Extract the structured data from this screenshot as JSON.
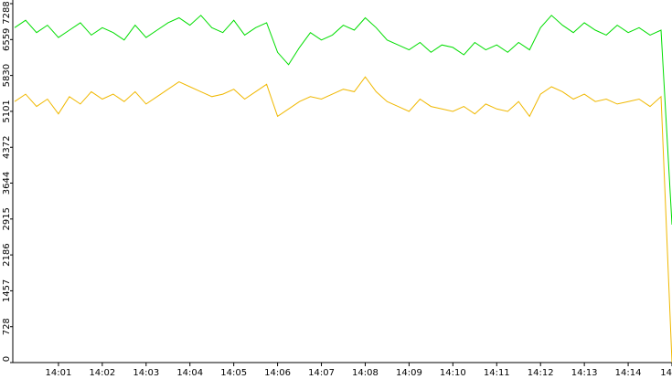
{
  "chart_data": {
    "type": "line",
    "categories": [
      null,
      null,
      null,
      null,
      "14:01",
      null,
      null,
      null,
      "14:02",
      null,
      null,
      null,
      "14:03",
      null,
      null,
      null,
      "14:04",
      null,
      null,
      null,
      "14:05",
      null,
      null,
      null,
      "14:06",
      null,
      null,
      null,
      "14:07",
      null,
      null,
      null,
      "14:08",
      null,
      null,
      null,
      "14:09",
      null,
      null,
      null,
      "14:10",
      null,
      null,
      null,
      "14:11",
      null,
      null,
      null,
      "14:12",
      null,
      null,
      null,
      "14:13",
      null,
      null,
      null,
      "14:14",
      null,
      null,
      null,
      "14"
    ],
    "series": [
      {
        "color": "#00dd00",
        "values": [
          6800,
          6950,
          6700,
          6850,
          6600,
          6750,
          6900,
          6650,
          6800,
          6700,
          6550,
          6850,
          6600,
          6750,
          6900,
          7000,
          6850,
          7050,
          6800,
          6700,
          6950,
          6650,
          6800,
          6900,
          6300,
          6050,
          6400,
          6700,
          6550,
          6650,
          6850,
          6750,
          7000,
          6800,
          6550,
          6450,
          6350,
          6500,
          6300,
          6450,
          6400,
          6250,
          6500,
          6350,
          6450,
          6300,
          6500,
          6350,
          6800,
          7050,
          6850,
          6700,
          6900,
          6750,
          6650,
          6850,
          6700,
          6800,
          6650,
          6750,
          2800
        ]
      },
      {
        "color": "#f0b800",
        "values": [
          5300,
          5450,
          5200,
          5350,
          5050,
          5400,
          5250,
          5500,
          5350,
          5450,
          5300,
          5500,
          5250,
          5400,
          5550,
          5700,
          5600,
          5500,
          5400,
          5450,
          5550,
          5350,
          5500,
          5650,
          5000,
          5150,
          5300,
          5400,
          5350,
          5450,
          5550,
          5500,
          5800,
          5500,
          5300,
          5200,
          5100,
          5350,
          5200,
          5150,
          5100,
          5200,
          5050,
          5250,
          5150,
          5100,
          5300,
          5000,
          5450,
          5600,
          5500,
          5350,
          5450,
          5300,
          5350,
          5250,
          5300,
          5350,
          5200,
          5400,
          0
        ]
      }
    ],
    "ylim": [
      0,
      7288
    ],
    "yticks": [
      0,
      728,
      1457,
      2186,
      2915,
      3644,
      4372,
      5101,
      5830,
      6559,
      7288
    ],
    "grid": false
  }
}
